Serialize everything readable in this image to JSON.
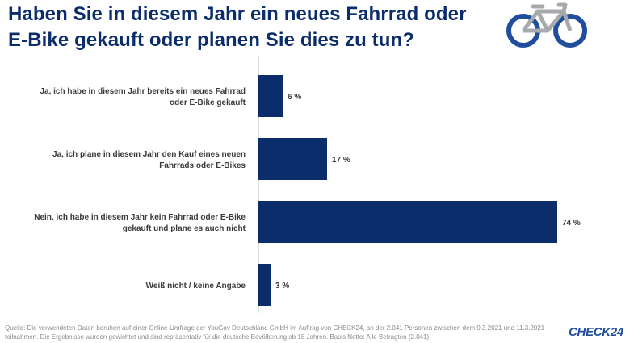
{
  "header": {
    "title_line1": "Haben Sie in diesem Jahr ein neues Fahrrad oder",
    "title_line2": "E-Bike gekauft oder planen Sie dies zu tun?",
    "icon": "bicycle-icon"
  },
  "chart_data": {
    "type": "bar",
    "orientation": "horizontal",
    "categories": [
      [
        "Ja, ich habe in diesem Jahr bereits ein neues Fahrrad",
        "oder E-Bike gekauft"
      ],
      [
        "Ja, ich plane in diesem Jahr den Kauf eines neuen",
        "Fahrrads oder E-Bikes"
      ],
      [
        "Nein, ich habe in diesem Jahr kein Fahrrad oder E-Bike",
        "gekauft und plane es auch nicht"
      ],
      [
        "Weiß nicht / keine Angabe"
      ]
    ],
    "values": [
      6,
      17,
      74,
      3
    ],
    "value_labels": [
      "6 %",
      "17 %",
      "74 %",
      "3 %"
    ],
    "unit": "%",
    "xlim": [
      0,
      74
    ],
    "grid": false,
    "bar_color": "#0c2d6b"
  },
  "footer": {
    "source": "Quelle: Die verwendeten Daten beruhen auf einer Online-Umfrage der YouGov Deutschland GmbH im Auftrag von CHECK24, an der 2.041 Personen zwischen dem 9.3.2021 und 11.3.2021 teilnahmen. Die Ergebnisse wurden gewichtet und sind repräsentativ für die deutsche Bevölkerung ab 18 Jahren. Basis Netto: Alle Befragten (2.041).",
    "logo": "CHECK24"
  }
}
